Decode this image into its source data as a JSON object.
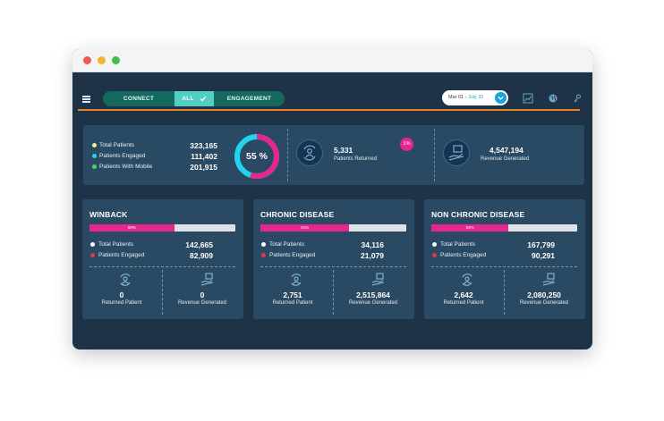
{
  "nav": {
    "tabs": [
      {
        "label": "CONNECT"
      },
      {
        "label": "ALL",
        "selected": true
      },
      {
        "label": "ENGAGEMENT"
      }
    ],
    "date_range": {
      "start": "Mar 01",
      "separator": " - ",
      "end": "July 31"
    }
  },
  "summary": {
    "rows": [
      {
        "label": "Total Patients",
        "value": "323,165",
        "color": "#e6f29a"
      },
      {
        "label": "Patients Engaged",
        "value": "111,402",
        "color": "#22d3ee"
      },
      {
        "label": "Patients With Mobile",
        "value": "201,915",
        "color": "#3ce04a"
      }
    ],
    "donut": {
      "label": "55 %",
      "fraction": 0.55,
      "fill_color": "#e4268d",
      "base_color": "#22d3ee"
    },
    "returned": {
      "value": "5,331",
      "label": "Patients Returned",
      "badge": "1%"
    },
    "revenue": {
      "value": "4,547,194",
      "label": "Revenue Generated"
    }
  },
  "cards": [
    {
      "title": "WINBACK",
      "bar_label": "58%",
      "bar_fraction": 0.58,
      "total_label": "Total Patients",
      "total_value": "142,665",
      "engaged_label": "Patients Engaged",
      "engaged_value": "82,909",
      "returned_value": "0",
      "returned_label": "Returned Patient",
      "revenue_value": "0",
      "revenue_label": "Revenue Generated"
    },
    {
      "title": "CHRONIC DISEASE",
      "bar_label": "61%",
      "bar_fraction": 0.61,
      "total_label": "Total Patients",
      "total_value": "34,116",
      "engaged_label": "Patients Engaged",
      "engaged_value": "21,079",
      "returned_value": "2,751",
      "returned_label": "Returned Patient",
      "revenue_value": "2,515,864",
      "revenue_label": "Revenue Generated"
    },
    {
      "title": "NON CHRONIC DISEASE",
      "bar_label": "53%",
      "bar_fraction": 0.53,
      "total_label": "Total Patients",
      "total_value": "167,799",
      "engaged_label": "Patients Engaged",
      "engaged_value": "90,291",
      "returned_value": "2,642",
      "returned_label": "Returned Patient",
      "revenue_value": "2,080,250",
      "revenue_label": "Revenue Generated"
    }
  ],
  "icons": {
    "menu": "hamburger-icon",
    "date_dropdown": "chevron-down-icon",
    "toolbar": [
      "chart-icon",
      "globe-icon",
      "key-icon"
    ],
    "patient": "patient-icon",
    "revenue": "money-hand-icon"
  },
  "colors": {
    "accent_pink": "#e4268d",
    "accent_cyan": "#22d3ee",
    "orange_rule": "#e8822a",
    "engaged_dot": "#e0384b",
    "total_dot": "#ffffff"
  }
}
